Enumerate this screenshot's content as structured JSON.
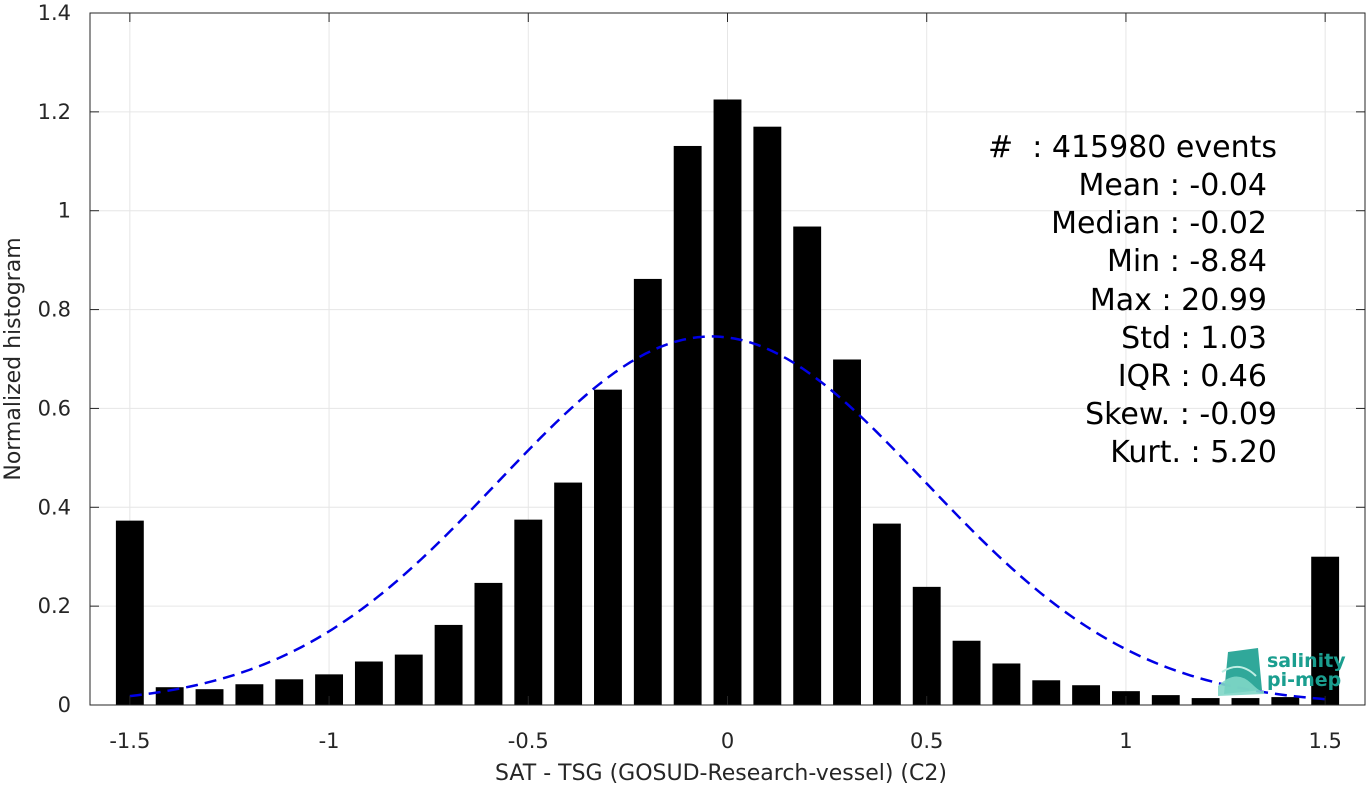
{
  "chart_data": {
    "type": "bar",
    "xlabel": "SAT - TSG (GOSUD-Research-vessel) (C2)",
    "ylabel": "Normalized histogram",
    "xlim": [
      -1.6,
      1.6
    ],
    "ylim": [
      0,
      1.4
    ],
    "xticks": [
      -1.5,
      -1,
      -0.5,
      0,
      0.5,
      1,
      1.5
    ],
    "xtick_labels": [
      "-1.5",
      "-1",
      "-0.5",
      "0",
      "0.5",
      "1",
      "1.5"
    ],
    "yticks": [
      0,
      0.2,
      0.4,
      0.6,
      0.8,
      1,
      1.2,
      1.4
    ],
    "ytick_labels": [
      "0",
      "0.2",
      "0.4",
      "0.6",
      "0.8",
      "1",
      "1.2",
      "1.4"
    ],
    "grid": true,
    "bar_width": 0.07,
    "x": [
      -1.5,
      -1.4,
      -1.3,
      -1.2,
      -1.1,
      -1.0,
      -0.9,
      -0.8,
      -0.7,
      -0.6,
      -0.5,
      -0.4,
      -0.3,
      -0.2,
      -0.1,
      0.0,
      0.1,
      0.2,
      0.3,
      0.4,
      0.5,
      0.6,
      0.7,
      0.8,
      0.9,
      1.0,
      1.1,
      1.2,
      1.3,
      1.4,
      1.5
    ],
    "values": [
      0.373,
      0.036,
      0.032,
      0.042,
      0.052,
      0.062,
      0.088,
      0.102,
      0.162,
      0.247,
      0.375,
      0.45,
      0.638,
      0.862,
      1.131,
      1.225,
      1.17,
      0.968,
      0.699,
      0.367,
      0.239,
      0.13,
      0.084,
      0.05,
      0.04,
      0.028,
      0.02,
      0.014,
      0.014,
      0.016,
      0.3
    ],
    "gaussian_fit": {
      "mean": -0.04,
      "std": 0.535,
      "x_range": [
        -1.5,
        1.5
      ],
      "color": "#0000e6",
      "style": "dashed"
    },
    "bar_color": "#000000",
    "annotations": [
      "#  : 415980 events",
      "Mean : -0.04",
      "Median : -0.02",
      "Min : -8.84",
      "Max : 20.99",
      "Std : 1.03",
      "IQR : 0.46",
      "Skew. : -0.09",
      "Kurt. : 5.20"
    ]
  },
  "logo": {
    "line1": "salinity",
    "line2": "pi-mep",
    "color": "#1a9e8f"
  }
}
